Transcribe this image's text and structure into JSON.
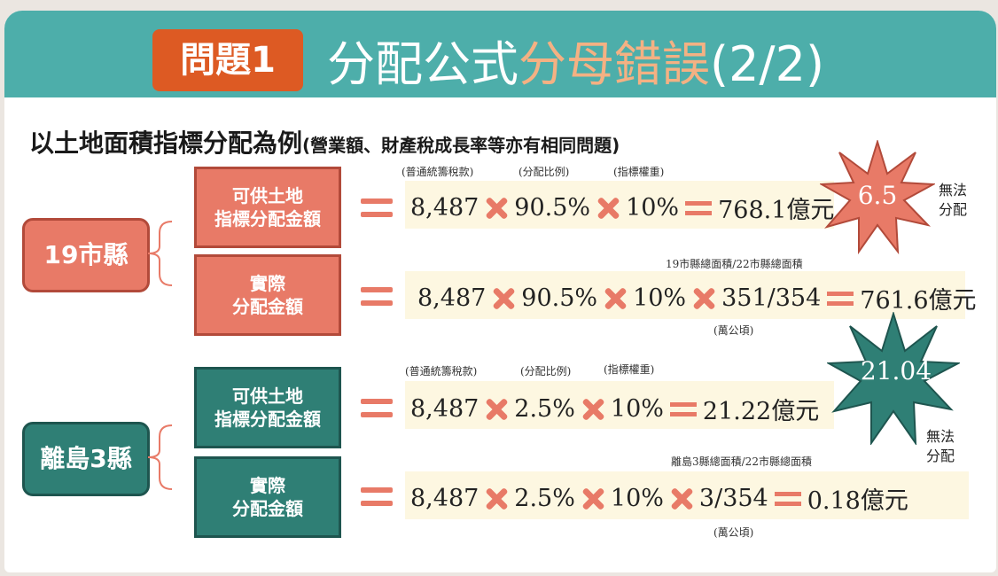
{
  "header": {
    "badge": "問題1",
    "title_main": "分配公式",
    "title_highlight": "分母錯誤",
    "title_suffix": "(2/2)"
  },
  "subtitle": {
    "main": "以土地面積指標分配為例",
    "note": "(營業額、財產稅成長率等亦有相同問題)"
  },
  "colors": {
    "teal": "#4daeaa",
    "orange": "#dd5a23",
    "salmon": "#e87a67",
    "dark_teal": "#2f7f75",
    "peach": "#f4b183"
  },
  "groups": [
    {
      "name": "19市縣",
      "rows": [
        {
          "label_lines": [
            "可供土地",
            "指標分配金額"
          ],
          "notes": [
            "(普通統籌稅款)",
            "(分配比例)",
            "(指標權重)"
          ],
          "v1": "8,487",
          "v2": "90.5%",
          "v3": "10%",
          "result": "768.1億元"
        },
        {
          "label_lines": [
            "實際",
            "分配金額"
          ],
          "top_note": "19市縣總面積/22市縣總面積",
          "bottom_note": "(萬公頃)",
          "v1": "8,487",
          "v2": "90.5%",
          "v3": "10%",
          "v4": "351/354",
          "result": "761.6億元"
        }
      ],
      "burst": {
        "value": "6.5",
        "caption_lines": [
          "無法",
          "分配"
        ]
      }
    },
    {
      "name": "離島3縣",
      "rows": [
        {
          "label_lines": [
            "可供土地",
            "指標分配金額"
          ],
          "notes": [
            "(普通統籌稅款)",
            "(分配比例)",
            "(指標權重)"
          ],
          "v1": "8,487",
          "v2": "2.5%",
          "v3": "10%",
          "result": "21.22億元"
        },
        {
          "label_lines": [
            "實際",
            "分配金額"
          ],
          "top_note": "離島3縣總面積/22市縣總面積",
          "bottom_note": "(萬公頃)",
          "v1": "8,487",
          "v2": "2.5%",
          "v3": "10%",
          "v4": "3/354",
          "result": "0.18億元"
        }
      ],
      "burst": {
        "value": "21.04",
        "caption_lines": [
          "無法",
          "分配"
        ]
      }
    }
  ]
}
